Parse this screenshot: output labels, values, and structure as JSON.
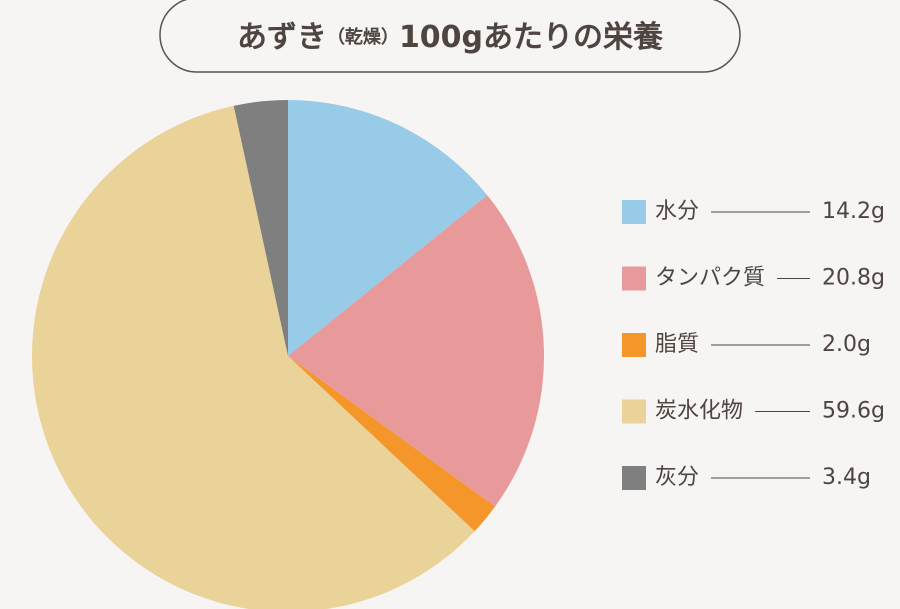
{
  "chart_data": {
    "type": "pie",
    "title": [
      "あずき",
      "（乾燥）",
      "100gあたりの栄養"
    ],
    "categories": [
      "水分",
      "タンパク質",
      "脂質",
      "炭水化物",
      "灰分"
    ],
    "values": [
      14.2,
      20.8,
      2.0,
      59.6,
      3.4
    ],
    "value_labels": [
      "14.2g",
      "20.8g",
      "2.0g",
      "59.6g",
      "3.4g"
    ],
    "colors": [
      "#97cbe8",
      "#e8999a",
      "#f4962a",
      "#e9d398",
      "#7f7f7f"
    ],
    "legend": "right"
  }
}
